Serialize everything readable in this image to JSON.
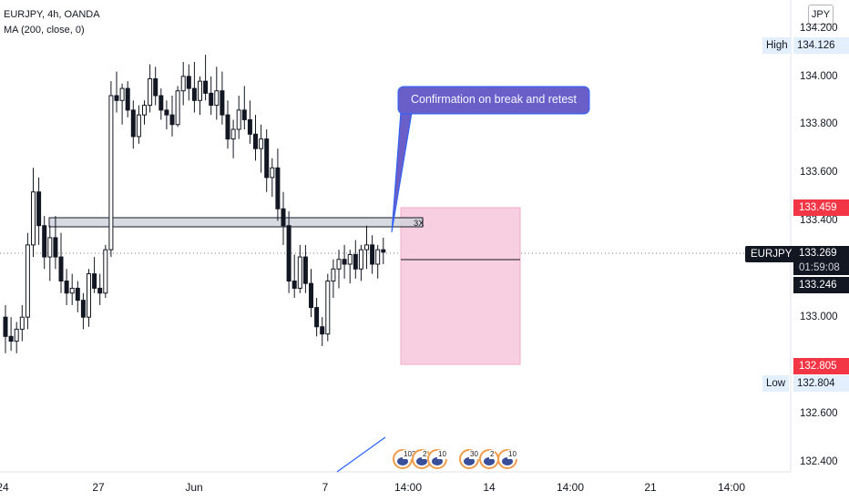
{
  "legend": {
    "symbol_line": "EURJPY, 4h, OANDA",
    "indicator_line": "MA (200, close, 0)"
  },
  "currency_button": "JPY",
  "annotation": {
    "callout_text": "Confirmation on break and retest",
    "zone_tag": "3X"
  },
  "price_axis": {
    "ticks": [
      "134.200",
      "134.000",
      "133.800",
      "133.600",
      "133.400",
      "133.000",
      "132.600",
      "132.400"
    ],
    "high_label": "High",
    "high_value": "134.126",
    "low_label": "Low",
    "low_value": "132.804",
    "current_symbol": "EURJPY",
    "current_price": "133.269",
    "countdown": "01:59:08",
    "ma_value": "133.246",
    "stop_price": "133.459",
    "target_price": "132.805"
  },
  "time_axis": {
    "ticks": [
      "24",
      "27",
      "Jun",
      "7",
      "14:00",
      "14",
      "14:00",
      "21",
      "14:00"
    ]
  },
  "events": {
    "group1_counts": [
      "103",
      "2",
      "10"
    ],
    "group2_counts": [
      "30",
      "2",
      "10"
    ]
  },
  "colors": {
    "up_down_candle": "#131722",
    "accent_red": "#f23645",
    "callout_fill": "#6a5ec8",
    "short_zone_fill": "#f8cfe0",
    "ma_line": "#2962ff",
    "resistance_zone": "#d1d4dc"
  },
  "chart_data": {
    "type": "candlestick",
    "title": "EURJPY, 4h, OANDA",
    "ylim": [
      132.35,
      134.3
    ],
    "y_ticks": [
      134.2,
      134.0,
      133.8,
      133.6,
      133.4,
      133.0,
      132.6,
      132.4
    ],
    "x_labels": [
      "24",
      "27",
      "Jun",
      "7",
      "14:00",
      "14",
      "14:00",
      "21",
      "14:00"
    ],
    "grid": false,
    "resistance_zone": [
      133.37,
      133.41
    ],
    "short_position": {
      "entry": 133.269,
      "stop": 133.459,
      "target": 132.805
    },
    "ma_200_last": 133.246,
    "high": 134.126,
    "low": 132.804,
    "candles": [
      [
        133.0,
        133.05,
        132.85,
        132.92
      ],
      [
        132.92,
        133.0,
        132.86,
        132.9
      ],
      [
        132.9,
        132.98,
        132.85,
        132.95
      ],
      [
        132.95,
        133.05,
        132.9,
        133.0
      ],
      [
        133.0,
        133.35,
        132.95,
        133.3
      ],
      [
        133.3,
        133.62,
        133.25,
        133.52
      ],
      [
        133.52,
        133.58,
        133.3,
        133.38
      ],
      [
        133.38,
        133.42,
        133.2,
        133.25
      ],
      [
        133.25,
        133.38,
        133.15,
        133.33
      ],
      [
        133.33,
        133.42,
        133.2,
        133.25
      ],
      [
        133.25,
        133.35,
        133.1,
        133.15
      ],
      [
        133.15,
        133.2,
        133.05,
        133.1
      ],
      [
        133.1,
        133.18,
        133.05,
        133.12
      ],
      [
        133.12,
        133.15,
        133.02,
        133.07
      ],
      [
        133.07,
        133.1,
        132.95,
        133.0
      ],
      [
        133.0,
        133.2,
        132.96,
        133.18
      ],
      [
        133.18,
        133.25,
        133.1,
        133.12
      ],
      [
        133.12,
        133.18,
        133.05,
        133.1
      ],
      [
        133.1,
        133.3,
        133.08,
        133.28
      ],
      [
        133.28,
        133.98,
        133.25,
        133.92
      ],
      [
        133.92,
        134.02,
        133.85,
        133.9
      ],
      [
        133.9,
        133.97,
        133.8,
        133.95
      ],
      [
        133.95,
        133.98,
        133.83,
        133.86
      ],
      [
        133.86,
        133.9,
        133.7,
        133.75
      ],
      [
        133.75,
        133.88,
        133.72,
        133.84
      ],
      [
        133.84,
        133.9,
        133.8,
        133.88
      ],
      [
        133.88,
        134.05,
        133.85,
        133.99
      ],
      [
        133.99,
        134.04,
        133.88,
        133.92
      ],
      [
        133.92,
        133.95,
        133.82,
        133.86
      ],
      [
        133.86,
        133.9,
        133.78,
        133.84
      ],
      [
        133.84,
        133.92,
        133.75,
        133.8
      ],
      [
        133.8,
        133.96,
        133.79,
        133.94
      ],
      [
        133.94,
        134.06,
        133.88,
        134.0
      ],
      [
        134.0,
        134.05,
        133.9,
        133.95
      ],
      [
        133.95,
        134.06,
        133.85,
        133.9
      ],
      [
        133.9,
        134.0,
        133.84,
        133.98
      ],
      [
        133.98,
        134.09,
        133.9,
        133.93
      ],
      [
        133.93,
        134.0,
        133.84,
        133.88
      ],
      [
        133.88,
        134.04,
        133.82,
        133.94
      ],
      [
        133.94,
        134.02,
        133.8,
        133.84
      ],
      [
        133.84,
        133.9,
        133.7,
        133.74
      ],
      [
        133.74,
        133.82,
        133.66,
        133.78
      ],
      [
        133.78,
        133.92,
        133.74,
        133.86
      ],
      [
        133.86,
        133.96,
        133.78,
        133.82
      ],
      [
        133.82,
        133.9,
        133.72,
        133.76
      ],
      [
        133.76,
        133.84,
        133.65,
        133.7
      ],
      [
        133.7,
        133.8,
        133.6,
        133.74
      ],
      [
        133.74,
        133.78,
        133.52,
        133.58
      ],
      [
        133.58,
        133.66,
        133.5,
        133.62
      ],
      [
        133.62,
        133.7,
        133.4,
        133.45
      ],
      [
        133.45,
        133.52,
        133.3,
        133.38
      ],
      [
        133.38,
        133.44,
        133.1,
        133.15
      ],
      [
        133.15,
        133.26,
        133.08,
        133.12
      ],
      [
        133.12,
        133.3,
        133.1,
        133.25
      ],
      [
        133.25,
        133.3,
        133.1,
        133.14
      ],
      [
        133.14,
        133.2,
        133.0,
        133.04
      ],
      [
        133.04,
        133.08,
        132.92,
        132.96
      ],
      [
        132.96,
        133.0,
        132.88,
        132.93
      ],
      [
        132.93,
        133.18,
        132.9,
        133.15
      ],
      [
        133.15,
        133.24,
        133.08,
        133.2
      ],
      [
        133.2,
        133.28,
        133.12,
        133.24
      ],
      [
        133.24,
        133.3,
        133.16,
        133.22
      ],
      [
        133.22,
        133.28,
        133.14,
        133.26
      ],
      [
        133.26,
        133.32,
        133.16,
        133.2
      ],
      [
        133.2,
        133.3,
        133.15,
        133.28
      ],
      [
        133.28,
        133.38,
        133.2,
        133.3
      ],
      [
        133.3,
        133.34,
        133.18,
        133.22
      ],
      [
        133.22,
        133.3,
        133.16,
        133.28
      ],
      [
        133.28,
        133.33,
        133.22,
        133.27
      ]
    ]
  }
}
